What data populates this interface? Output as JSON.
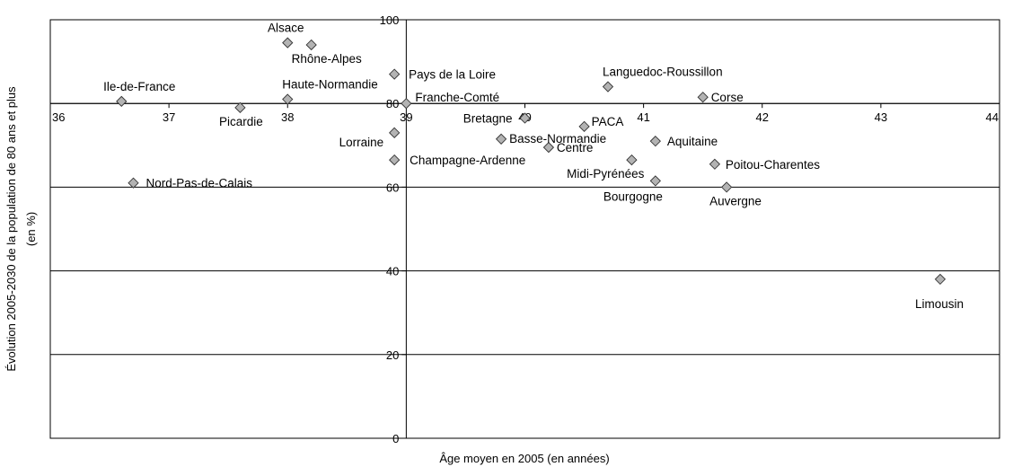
{
  "chart_data": {
    "type": "scatter",
    "xlabel": "Âge moyen en 2005 (en années)",
    "ylabel_lines": [
      "Évolution 2005-2030 de la population de 80 ans et plus",
      "(en %)"
    ],
    "xlim": [
      36,
      44
    ],
    "ylim": [
      0,
      100
    ],
    "x_ticks": [
      36,
      37,
      38,
      39,
      40,
      41,
      42,
      43,
      44
    ],
    "y_ticks": [
      0,
      20,
      40,
      60,
      80,
      100
    ],
    "x_axis_crosses_y": 80,
    "y_axis_crosses_x": 39,
    "grid": "horizontal",
    "marker": "diamond",
    "marker_color": "#b3b3b3",
    "points": [
      {
        "name": "Alsace",
        "x": 38.0,
        "y": 94.5
      },
      {
        "name": "Rhône-Alpes",
        "x": 38.2,
        "y": 94.0
      },
      {
        "name": "Pays de la Loire",
        "x": 38.9,
        "y": 87.0
      },
      {
        "name": "Ile-de-France",
        "x": 36.6,
        "y": 80.5
      },
      {
        "name": "Haute-Normandie",
        "x": 38.0,
        "y": 81.0
      },
      {
        "name": "Picardie",
        "x": 37.6,
        "y": 79.0
      },
      {
        "name": "Franche-Comté",
        "x": 39.0,
        "y": 80.0
      },
      {
        "name": "Languedoc-Roussillon",
        "x": 40.7,
        "y": 84.0
      },
      {
        "name": "Corse",
        "x": 41.5,
        "y": 81.5
      },
      {
        "name": "Bretagne",
        "x": 40.0,
        "y": 76.5
      },
      {
        "name": "PACA",
        "x": 40.5,
        "y": 74.5
      },
      {
        "name": "Lorraine",
        "x": 38.9,
        "y": 73.0
      },
      {
        "name": "Basse-Normandie",
        "x": 39.8,
        "y": 71.5
      },
      {
        "name": "Centre",
        "x": 40.2,
        "y": 69.5
      },
      {
        "name": "Aquitaine",
        "x": 41.1,
        "y": 71.0
      },
      {
        "name": "Champagne-Ardenne",
        "x": 38.9,
        "y": 66.5
      },
      {
        "name": "Midi-Pyrénées",
        "x": 40.9,
        "y": 66.5
      },
      {
        "name": "Poitou-Charentes",
        "x": 41.6,
        "y": 65.5
      },
      {
        "name": "Bourgogne",
        "x": 41.1,
        "y": 61.5
      },
      {
        "name": "Auvergne",
        "x": 41.7,
        "y": 60.0
      },
      {
        "name": "Nord-Pas-de-Calais",
        "x": 36.7,
        "y": 61.0
      },
      {
        "name": "Limousin",
        "x": 43.5,
        "y": 38.0
      }
    ]
  }
}
